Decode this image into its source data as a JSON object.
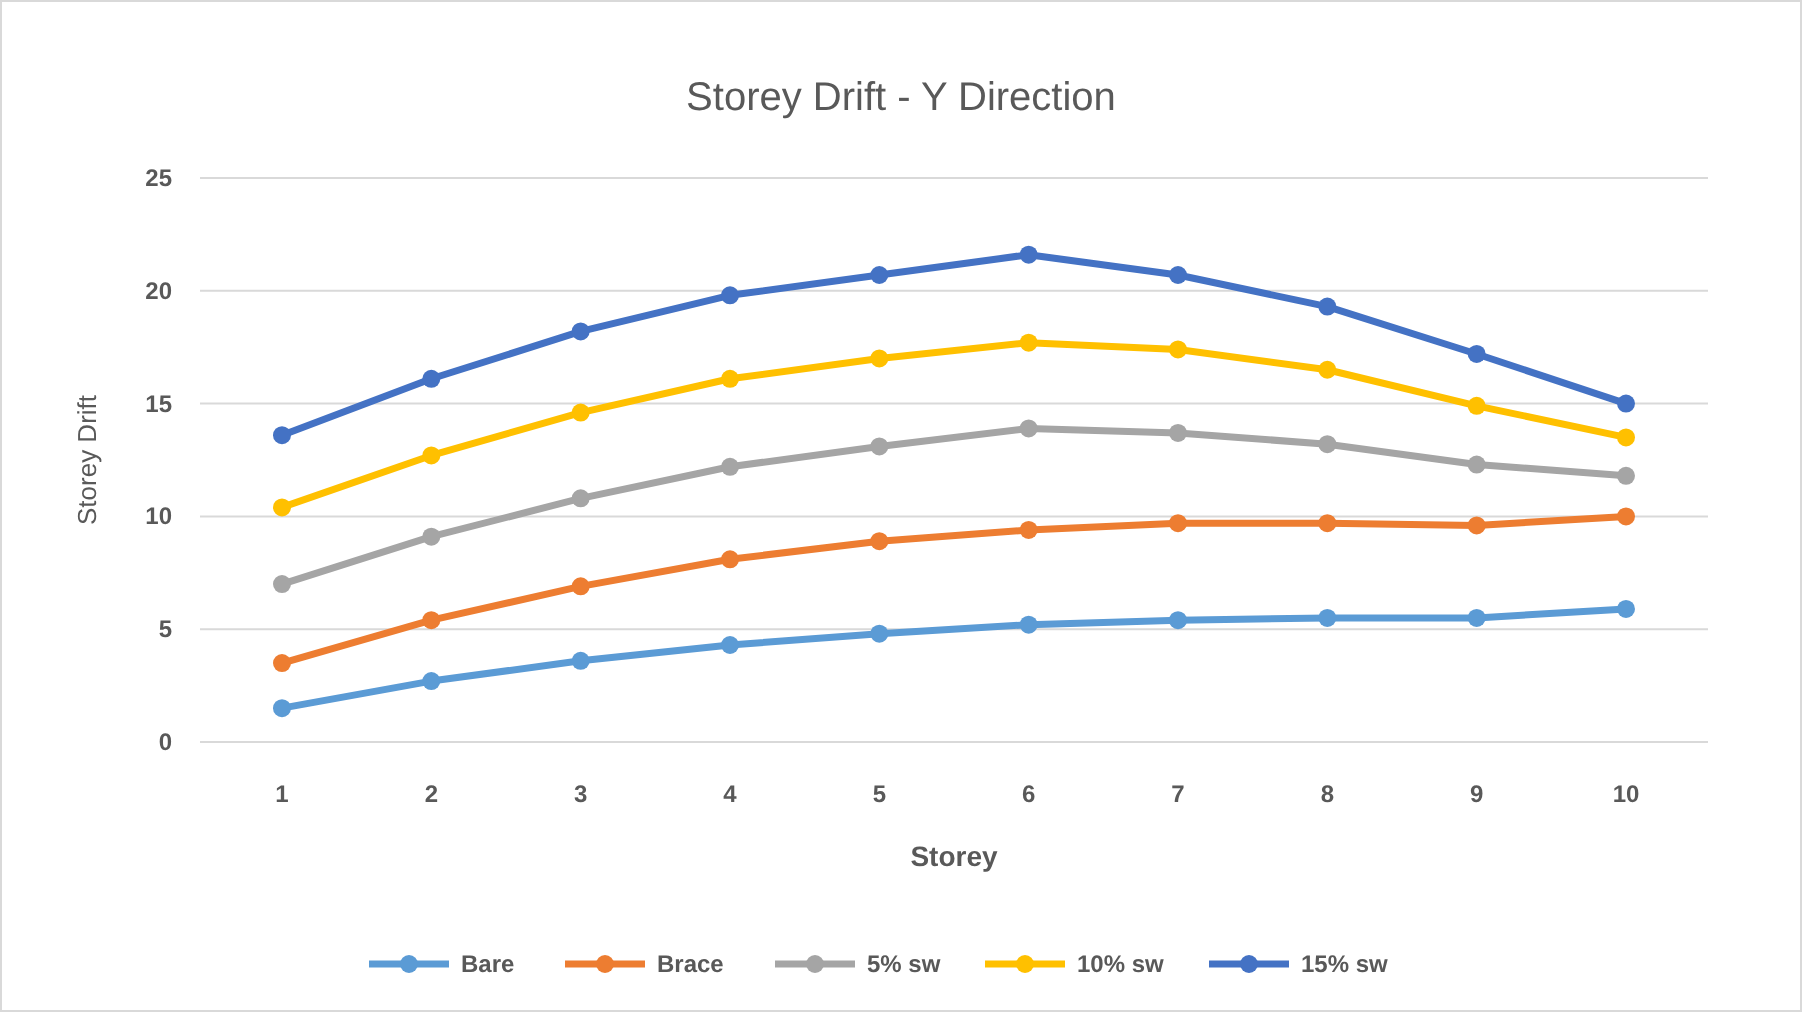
{
  "chart_data": {
    "type": "line",
    "title": "Storey Drift - Y Direction",
    "xlabel": "Storey",
    "ylabel": "Storey Drift",
    "categories": [
      "1",
      "2",
      "3",
      "4",
      "5",
      "6",
      "7",
      "8",
      "9",
      "10"
    ],
    "series": [
      {
        "name": "Bare",
        "color": "#5b9bd5",
        "values": [
          1.5,
          2.7,
          3.6,
          4.3,
          4.8,
          5.2,
          5.4,
          5.5,
          5.5,
          5.9
        ]
      },
      {
        "name": "Brace",
        "color": "#ed7d31",
        "values": [
          3.5,
          5.4,
          6.9,
          8.1,
          8.9,
          9.4,
          9.7,
          9.7,
          9.6,
          10.0
        ]
      },
      {
        "name": "5% sw",
        "color": "#a5a5a5",
        "values": [
          7.0,
          9.1,
          10.8,
          12.2,
          13.1,
          13.9,
          13.7,
          13.2,
          12.3,
          11.8
        ]
      },
      {
        "name": "10% sw",
        "color": "#ffc000",
        "values": [
          10.4,
          12.7,
          14.6,
          16.1,
          17.0,
          17.7,
          17.4,
          16.5,
          14.9,
          13.5
        ]
      },
      {
        "name": "15% sw",
        "color": "#4472c4",
        "values": [
          13.6,
          16.1,
          18.2,
          19.8,
          20.7,
          21.6,
          20.7,
          19.3,
          17.2,
          15.0
        ]
      }
    ],
    "ylim": [
      0,
      25
    ],
    "yticks": [
      0,
      5,
      10,
      15,
      20,
      25
    ],
    "grid": "y",
    "legend": "bottom",
    "marker": "circle",
    "line_style": "solid"
  }
}
